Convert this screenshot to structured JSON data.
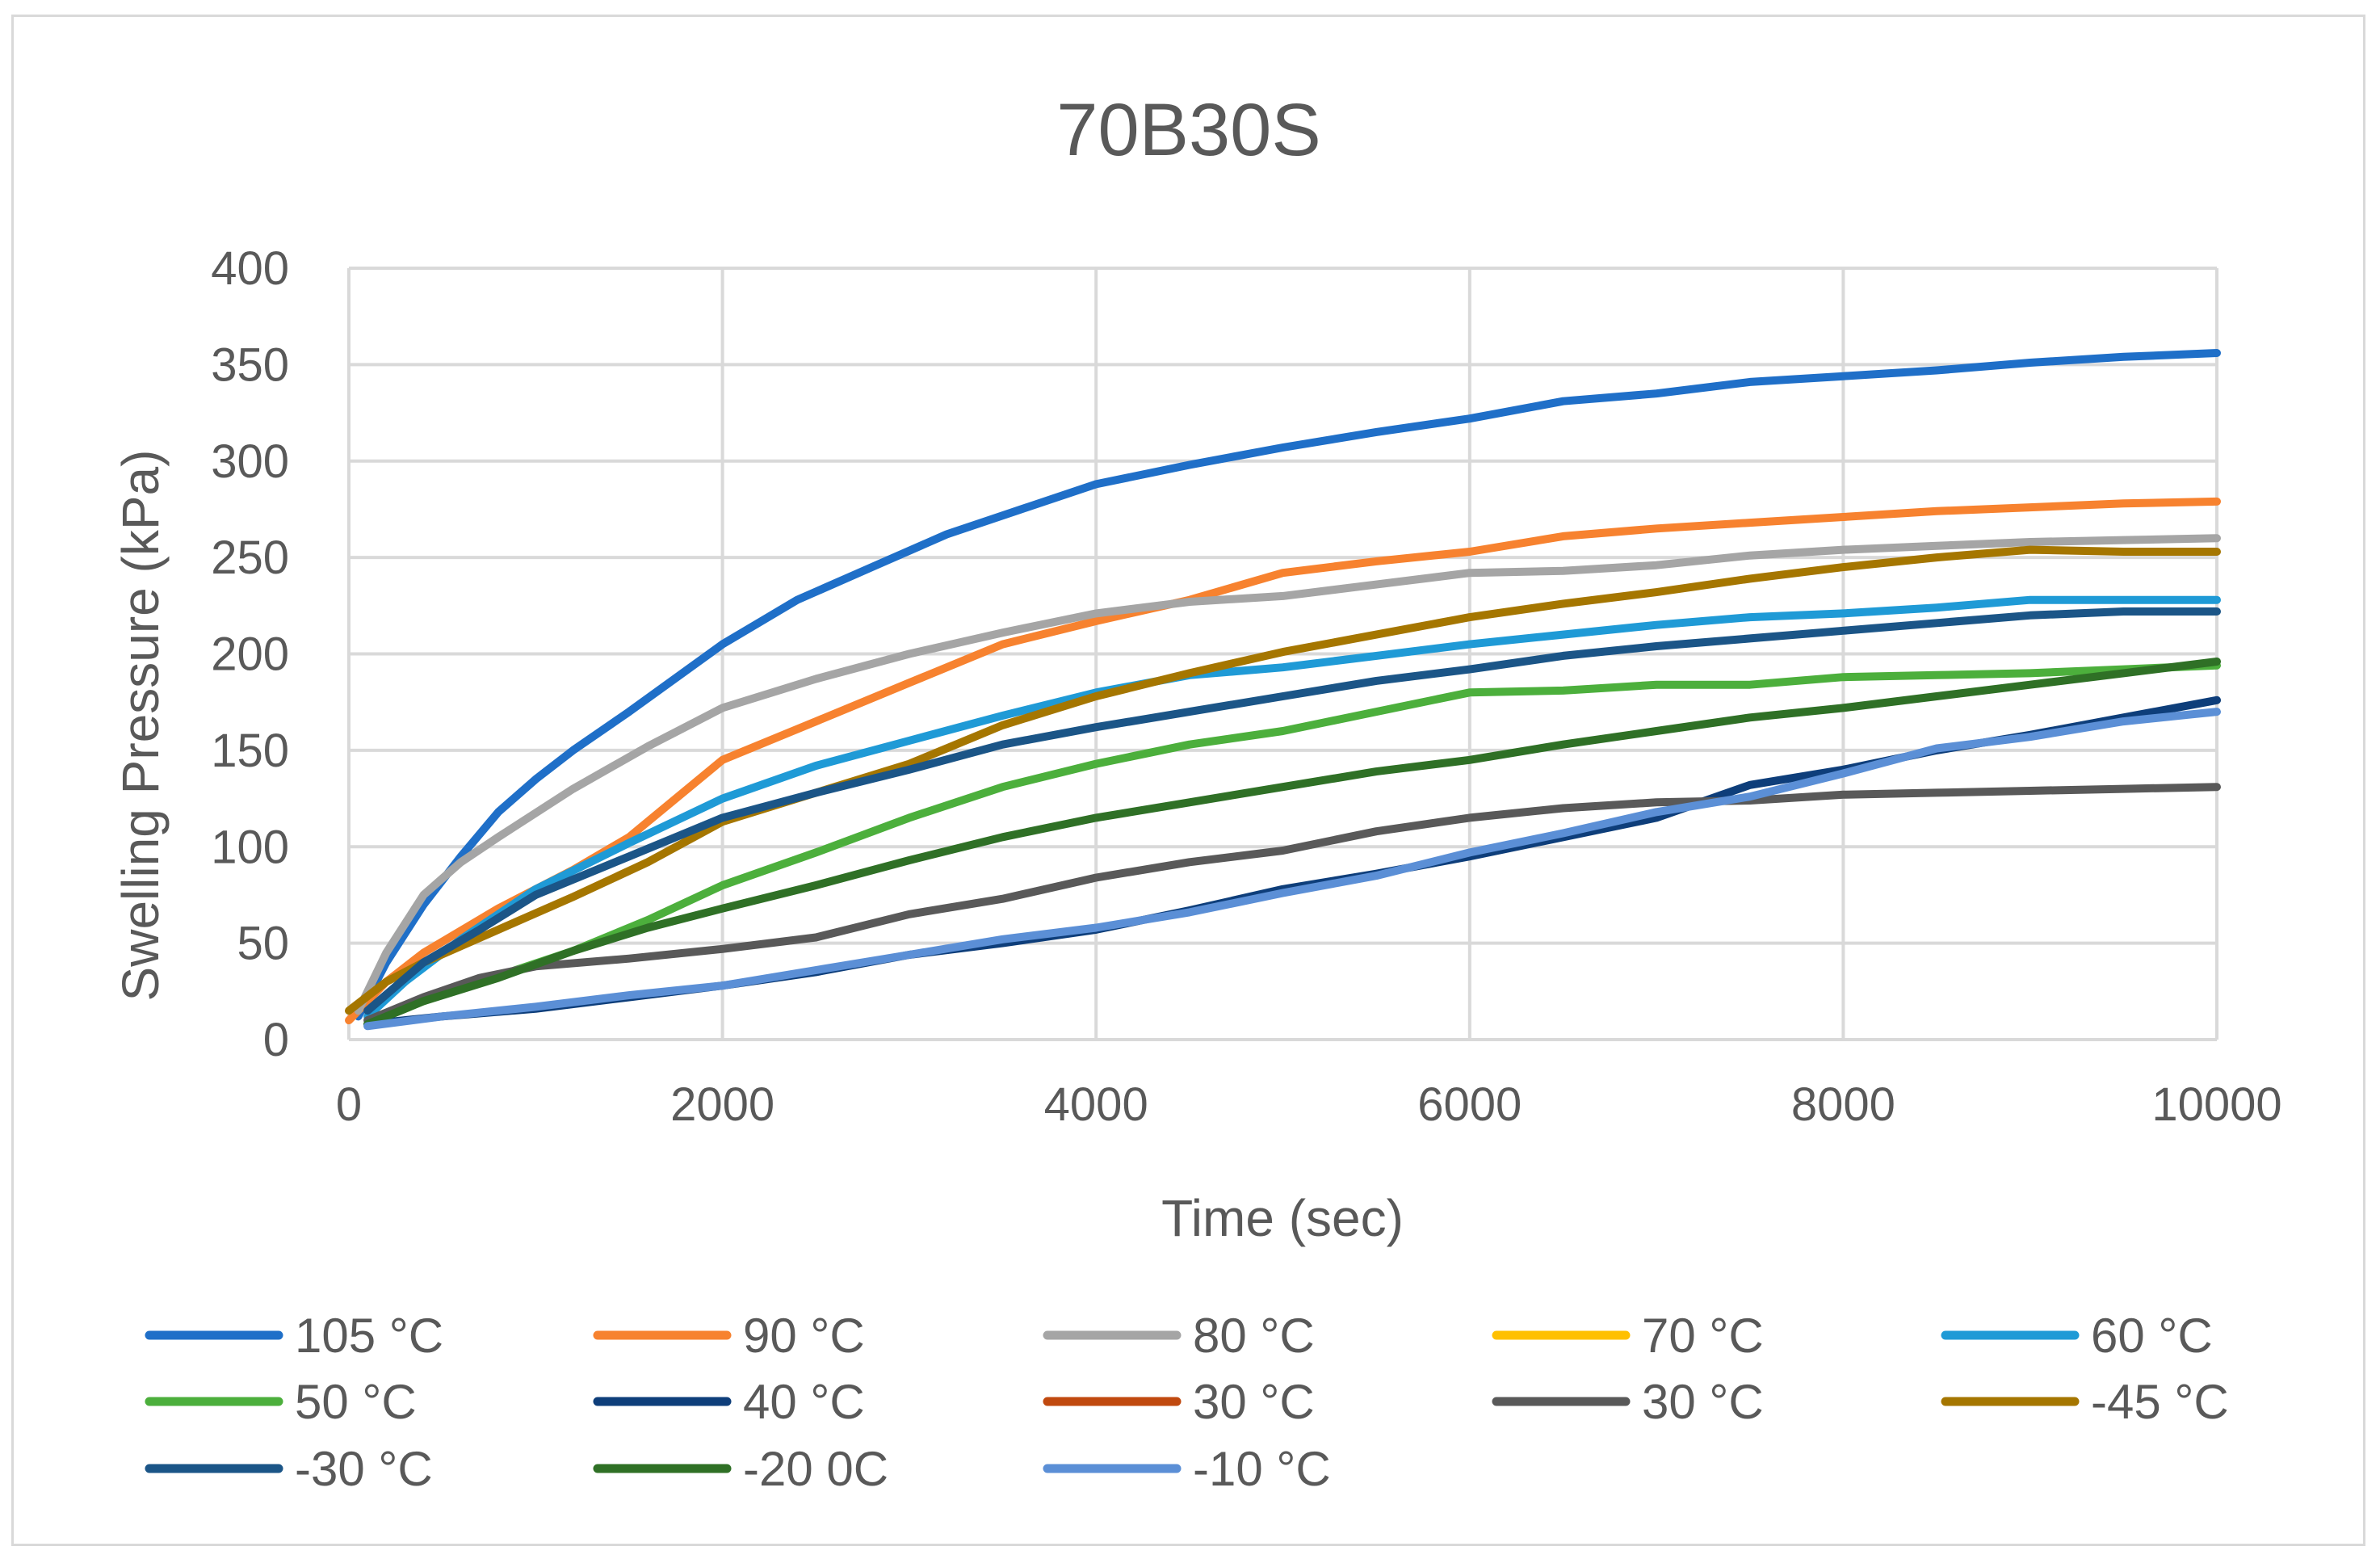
{
  "chart_data": {
    "type": "line",
    "title": "70B30S",
    "xlabel": "Time (sec)",
    "ylabel": "Swelling Pressure (kPa)",
    "xlim": [
      0,
      10000
    ],
    "ylim": [
      0,
      400
    ],
    "xticks": [
      "0",
      "2000",
      "4000",
      "6000",
      "8000",
      "10000"
    ],
    "yticks": [
      "0",
      "50",
      "100",
      "150",
      "200",
      "250",
      "300",
      "350",
      "400"
    ],
    "grid": true,
    "legend_position": "bottom",
    "series": [
      {
        "name": "105 °C",
        "color": "#1f6fc8",
        "points": [
          [
            50,
            12
          ],
          [
            200,
            40
          ],
          [
            400,
            70
          ],
          [
            600,
            95
          ],
          [
            800,
            118
          ],
          [
            1000,
            135
          ],
          [
            1200,
            150
          ],
          [
            1500,
            170
          ],
          [
            2000,
            205
          ],
          [
            2400,
            228
          ],
          [
            2800,
            245
          ],
          [
            3200,
            262
          ],
          [
            3600,
            275
          ],
          [
            4000,
            288
          ],
          [
            4500,
            298
          ],
          [
            5000,
            307
          ],
          [
            5500,
            315
          ],
          [
            6000,
            322
          ],
          [
            6500,
            331
          ],
          [
            7000,
            335
          ],
          [
            7500,
            341
          ],
          [
            8000,
            344
          ],
          [
            8500,
            347
          ],
          [
            9000,
            351
          ],
          [
            9500,
            354
          ],
          [
            10000,
            356
          ]
        ]
      },
      {
        "name": "90 °C",
        "color": "#f7822f",
        "points": [
          [
            0,
            10
          ],
          [
            200,
            30
          ],
          [
            400,
            45
          ],
          [
            800,
            68
          ],
          [
            1200,
            88
          ],
          [
            1500,
            105
          ],
          [
            2000,
            145
          ],
          [
            2500,
            165
          ],
          [
            3000,
            185
          ],
          [
            3500,
            205
          ],
          [
            4000,
            217
          ],
          [
            4500,
            228
          ],
          [
            5000,
            242
          ],
          [
            5500,
            248
          ],
          [
            6000,
            253
          ],
          [
            6500,
            261
          ],
          [
            7000,
            265
          ],
          [
            7500,
            268
          ],
          [
            8000,
            271
          ],
          [
            8500,
            274
          ],
          [
            9000,
            276
          ],
          [
            9500,
            278
          ],
          [
            10000,
            279
          ]
        ]
      },
      {
        "name": "80 °C",
        "color": "#a5a5a5",
        "points": [
          [
            50,
            15
          ],
          [
            200,
            45
          ],
          [
            400,
            75
          ],
          [
            600,
            92
          ],
          [
            800,
            105
          ],
          [
            1200,
            130
          ],
          [
            1600,
            152
          ],
          [
            2000,
            172
          ],
          [
            2500,
            187
          ],
          [
            3000,
            200
          ],
          [
            3500,
            211
          ],
          [
            4000,
            221
          ],
          [
            4500,
            227
          ],
          [
            5000,
            230
          ],
          [
            5500,
            236
          ],
          [
            6000,
            242
          ],
          [
            6500,
            243
          ],
          [
            7000,
            246
          ],
          [
            7500,
            251
          ],
          [
            8000,
            254
          ],
          [
            8500,
            256
          ],
          [
            9000,
            258
          ],
          [
            9500,
            259
          ],
          [
            10000,
            260
          ]
        ]
      },
      {
        "name": "70 °C",
        "color": "#ffc000",
        "points": []
      },
      {
        "name": "60 °C",
        "color": "#1f9ad6",
        "points": [
          [
            100,
            12
          ],
          [
            300,
            30
          ],
          [
            600,
            52
          ],
          [
            1000,
            78
          ],
          [
            1500,
            102
          ],
          [
            2000,
            125
          ],
          [
            2500,
            142
          ],
          [
            3000,
            155
          ],
          [
            3500,
            168
          ],
          [
            4000,
            180
          ],
          [
            4500,
            189
          ],
          [
            5000,
            193
          ],
          [
            5500,
            199
          ],
          [
            6000,
            205
          ],
          [
            6500,
            210
          ],
          [
            7000,
            215
          ],
          [
            7500,
            219
          ],
          [
            8000,
            221
          ],
          [
            8500,
            224
          ],
          [
            9000,
            228
          ],
          [
            9500,
            228
          ],
          [
            10000,
            228
          ]
        ]
      },
      {
        "name": "50 °C",
        "color": "#4caf3c",
        "points": [
          [
            100,
            8
          ],
          [
            400,
            20
          ],
          [
            800,
            33
          ],
          [
            1200,
            46
          ],
          [
            1600,
            62
          ],
          [
            2000,
            80
          ],
          [
            2500,
            97
          ],
          [
            3000,
            115
          ],
          [
            3500,
            131
          ],
          [
            4000,
            143
          ],
          [
            4500,
            153
          ],
          [
            5000,
            160
          ],
          [
            5500,
            170
          ],
          [
            6000,
            180
          ],
          [
            6500,
            181
          ],
          [
            7000,
            184
          ],
          [
            7500,
            184
          ],
          [
            8000,
            188
          ],
          [
            8500,
            189
          ],
          [
            9000,
            190
          ],
          [
            9500,
            192
          ],
          [
            10000,
            194
          ]
        ]
      },
      {
        "name": "40 °C",
        "color": "#0e3e7a",
        "points": [
          [
            100,
            8
          ],
          [
            500,
            12
          ],
          [
            1000,
            16
          ],
          [
            1500,
            22
          ],
          [
            2000,
            28
          ],
          [
            2500,
            35
          ],
          [
            3000,
            44
          ],
          [
            3500,
            50
          ],
          [
            4000,
            57
          ],
          [
            4500,
            67
          ],
          [
            5000,
            78
          ],
          [
            5500,
            86
          ],
          [
            6000,
            95
          ],
          [
            6500,
            105
          ],
          [
            7000,
            115
          ],
          [
            7500,
            132
          ],
          [
            8000,
            140
          ],
          [
            8500,
            150
          ],
          [
            9000,
            158
          ],
          [
            9500,
            167
          ],
          [
            10000,
            176
          ]
        ]
      },
      {
        "name": "30 °C",
        "color": "#c0490f",
        "points": []
      },
      {
        "name": "30 °C",
        "color": "#595959",
        "points": [
          [
            100,
            10
          ],
          [
            400,
            22
          ],
          [
            700,
            32
          ],
          [
            1000,
            38
          ],
          [
            1500,
            42
          ],
          [
            2000,
            47
          ],
          [
            2500,
            53
          ],
          [
            3000,
            65
          ],
          [
            3500,
            73
          ],
          [
            4000,
            84
          ],
          [
            4500,
            92
          ],
          [
            5000,
            98
          ],
          [
            5500,
            108
          ],
          [
            6000,
            115
          ],
          [
            6500,
            120
          ],
          [
            7000,
            123
          ],
          [
            7500,
            124
          ],
          [
            8000,
            127
          ],
          [
            8500,
            128
          ],
          [
            9000,
            129
          ],
          [
            9500,
            130
          ],
          [
            10000,
            131
          ]
        ]
      },
      {
        "name": "-45 °C",
        "color": "#a57600",
        "points": [
          [
            0,
            15
          ],
          [
            200,
            30
          ],
          [
            400,
            40
          ],
          [
            800,
            57
          ],
          [
            1200,
            74
          ],
          [
            1600,
            92
          ],
          [
            2000,
            113
          ],
          [
            2500,
            128
          ],
          [
            3000,
            143
          ],
          [
            3500,
            163
          ],
          [
            4000,
            178
          ],
          [
            4500,
            190
          ],
          [
            5000,
            201
          ],
          [
            5500,
            210
          ],
          [
            6000,
            219
          ],
          [
            6500,
            226
          ],
          [
            7000,
            232
          ],
          [
            7500,
            239
          ],
          [
            8000,
            245
          ],
          [
            8500,
            250
          ],
          [
            9000,
            254
          ],
          [
            9500,
            253
          ],
          [
            10000,
            253
          ]
        ]
      },
      {
        "name": "-30 °C",
        "color": "#1b5587",
        "points": [
          [
            100,
            15
          ],
          [
            400,
            40
          ],
          [
            700,
            57
          ],
          [
            1000,
            75
          ],
          [
            1500,
            95
          ],
          [
            2000,
            115
          ],
          [
            2500,
            128
          ],
          [
            3000,
            140
          ],
          [
            3500,
            153
          ],
          [
            4000,
            162
          ],
          [
            4500,
            170
          ],
          [
            5000,
            178
          ],
          [
            5500,
            186
          ],
          [
            6000,
            192
          ],
          [
            6500,
            199
          ],
          [
            7000,
            204
          ],
          [
            7500,
            208
          ],
          [
            8000,
            212
          ],
          [
            8500,
            216
          ],
          [
            9000,
            220
          ],
          [
            9500,
            222
          ],
          [
            10000,
            222
          ]
        ]
      },
      {
        "name": "-20 0C",
        "color": "#2f7026",
        "points": [
          [
            100,
            8
          ],
          [
            400,
            20
          ],
          [
            800,
            32
          ],
          [
            1200,
            46
          ],
          [
            1600,
            58
          ],
          [
            2000,
            68
          ],
          [
            2500,
            80
          ],
          [
            3000,
            93
          ],
          [
            3500,
            105
          ],
          [
            4000,
            115
          ],
          [
            4500,
            123
          ],
          [
            5000,
            131
          ],
          [
            5500,
            139
          ],
          [
            6000,
            145
          ],
          [
            6500,
            153
          ],
          [
            7000,
            160
          ],
          [
            7500,
            167
          ],
          [
            8000,
            172
          ],
          [
            8500,
            178
          ],
          [
            9000,
            184
          ],
          [
            9500,
            190
          ],
          [
            10000,
            196
          ]
        ]
      },
      {
        "name": "-10 °C",
        "color": "#5b8fd6",
        "points": [
          [
            100,
            7
          ],
          [
            500,
            12
          ],
          [
            1000,
            17
          ],
          [
            1500,
            23
          ],
          [
            2000,
            28
          ],
          [
            2500,
            36
          ],
          [
            3000,
            44
          ],
          [
            3500,
            52
          ],
          [
            4000,
            58
          ],
          [
            4500,
            66
          ],
          [
            5000,
            76
          ],
          [
            5500,
            85
          ],
          [
            6000,
            97
          ],
          [
            6500,
            107
          ],
          [
            7000,
            118
          ],
          [
            7500,
            126
          ],
          [
            8000,
            138
          ],
          [
            8500,
            151
          ],
          [
            9000,
            157
          ],
          [
            9500,
            165
          ],
          [
            10000,
            170
          ]
        ]
      }
    ]
  }
}
